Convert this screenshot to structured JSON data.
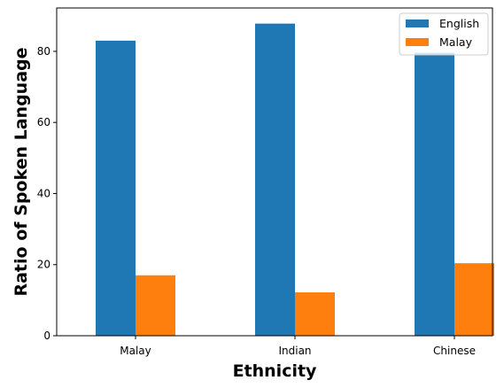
{
  "chart_data": {
    "type": "bar",
    "title": "",
    "xlabel": "Ethnicity",
    "ylabel": "Ratio of Spoken Language",
    "categories": [
      "Malay",
      "Indian",
      "Chinese"
    ],
    "series": [
      {
        "name": "English",
        "values": [
          83.0,
          87.8,
          79.6
        ],
        "color": "#1f77b4"
      },
      {
        "name": "Malay",
        "values": [
          17.0,
          12.2,
          20.4
        ],
        "color": "#ff7f0e"
      }
    ],
    "ylim": [
      0,
      92.2
    ],
    "yticks": [
      0,
      20,
      40,
      60,
      80
    ],
    "grid": false,
    "legend": "top-right"
  }
}
